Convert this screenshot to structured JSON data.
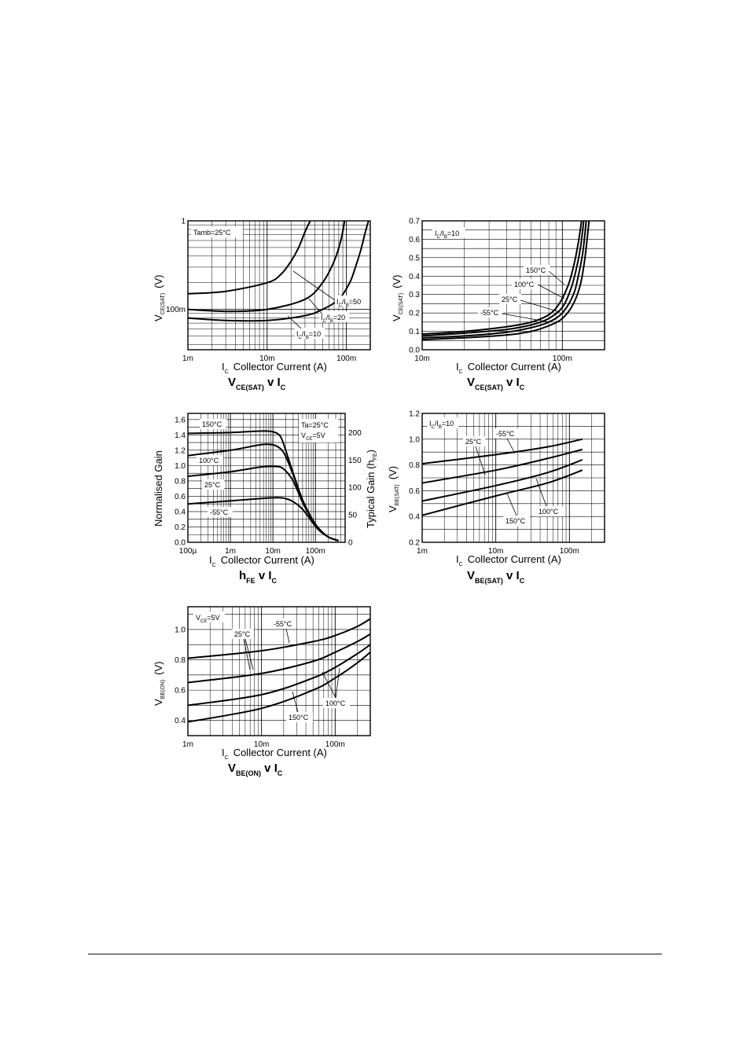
{
  "chart_data": [
    {
      "id": "c1",
      "type": "line",
      "title": "VCE(SAT) v IC",
      "xlabel": "IC Collector Current (A)",
      "ylabel": "VCE(SAT) (V)",
      "xscale": "log",
      "yscale": "log",
      "xlim": [
        0.001,
        0.2
      ],
      "ylim": [
        0.035,
        1
      ],
      "xticks": [
        [
          "1m",
          0.001
        ],
        [
          "10m",
          0.01
        ],
        [
          "100m",
          0.1
        ]
      ],
      "yticks": [
        [
          "100m",
          0.1
        ],
        [
          "1",
          1
        ]
      ],
      "annotations": [
        "Tamb=25°C",
        "IC/IB=50",
        "IC/IB=20",
        "IC/IB=10"
      ],
      "series": [
        {
          "name": "IC/IB=50",
          "x": [
            0.001,
            0.003,
            0.01,
            0.015,
            0.02,
            0.025,
            0.03,
            0.035
          ],
          "y": [
            0.15,
            0.16,
            0.2,
            0.25,
            0.35,
            0.5,
            0.75,
            1.0
          ]
        },
        {
          "name": "IC/IB=20",
          "x": [
            0.001,
            0.003,
            0.01,
            0.03,
            0.05,
            0.07,
            0.085,
            0.095
          ],
          "y": [
            0.1,
            0.095,
            0.1,
            0.13,
            0.2,
            0.35,
            0.6,
            1.0
          ]
        },
        {
          "name": "IC/IB=10",
          "x": [
            0.001,
            0.003,
            0.01,
            0.03,
            0.05,
            0.08,
            0.11,
            0.13,
            0.15,
            0.17,
            0.19
          ],
          "y": [
            0.08,
            0.075,
            0.075,
            0.085,
            0.1,
            0.13,
            0.2,
            0.3,
            0.45,
            0.7,
            1.0
          ]
        }
      ]
    },
    {
      "id": "c2",
      "type": "line",
      "title": "VCE(SAT) v IC",
      "xlabel": "IC Collector Current (A)",
      "ylabel": "VCE(SAT) (V)",
      "xscale": "log",
      "yscale": "linear",
      "xlim": [
        0.01,
        0.2
      ],
      "ylim": [
        0,
        0.7
      ],
      "xticks": [
        [
          "10m",
          0.01
        ],
        [
          "100m",
          0.1
        ]
      ],
      "yticks": [
        [
          "0.0",
          0
        ],
        [
          "0.1",
          0.1
        ],
        [
          "0.2",
          0.2
        ],
        [
          "0.3",
          0.3
        ],
        [
          "0.4",
          0.4
        ],
        [
          "0.5",
          0.5
        ],
        [
          "0.6",
          0.6
        ],
        [
          "0.7",
          0.7
        ]
      ],
      "annotations": [
        "IC/IB=10"
      ],
      "series": [
        {
          "name": "150°C",
          "x": [
            0.01,
            0.02,
            0.04,
            0.06,
            0.08,
            0.095,
            0.11,
            0.12,
            0.13,
            0.137
          ],
          "y": [
            0.085,
            0.1,
            0.125,
            0.15,
            0.19,
            0.25,
            0.35,
            0.45,
            0.58,
            0.7
          ]
        },
        {
          "name": "100°C",
          "x": [
            0.01,
            0.02,
            0.04,
            0.06,
            0.08,
            0.1,
            0.115,
            0.125,
            0.135,
            0.142
          ],
          "y": [
            0.075,
            0.09,
            0.11,
            0.135,
            0.17,
            0.23,
            0.33,
            0.43,
            0.56,
            0.7
          ]
        },
        {
          "name": "25°C",
          "x": [
            0.01,
            0.02,
            0.04,
            0.06,
            0.08,
            0.1,
            0.12,
            0.13,
            0.14,
            0.148
          ],
          "y": [
            0.065,
            0.075,
            0.095,
            0.12,
            0.15,
            0.2,
            0.3,
            0.4,
            0.53,
            0.7
          ]
        },
        {
          "name": "-55°C",
          "x": [
            0.01,
            0.02,
            0.04,
            0.06,
            0.08,
            0.1,
            0.12,
            0.135,
            0.145,
            0.155
          ],
          "y": [
            0.055,
            0.065,
            0.08,
            0.1,
            0.13,
            0.17,
            0.25,
            0.36,
            0.5,
            0.7
          ]
        }
      ]
    },
    {
      "id": "c3",
      "type": "line",
      "title": "hFE v IC",
      "xlabel": "IC Collector Current (A)",
      "ylabel": "Normalised Gain",
      "y2label": "Typical Gain (hFE)",
      "xscale": "log",
      "yscale": "linear",
      "xlim": [
        0.0001,
        0.5
      ],
      "ylim": [
        0,
        1.68
      ],
      "xticks": [
        [
          "100µ",
          0.0001
        ],
        [
          "1m",
          0.001
        ],
        [
          "10m",
          0.01
        ],
        [
          "100m",
          0.1
        ]
      ],
      "yticks": [
        [
          "0.0",
          0
        ],
        [
          "0.2",
          0.2
        ],
        [
          "0.4",
          0.4
        ],
        [
          "0.6",
          0.6
        ],
        [
          "0.8",
          0.8
        ],
        [
          "1.0",
          1.0
        ],
        [
          "1.2",
          1.2
        ],
        [
          "1.4",
          1.4
        ],
        [
          "1.6",
          1.6
        ]
      ],
      "y2ticks": [
        [
          "0",
          0
        ],
        [
          "50",
          50
        ],
        [
          "100",
          100
        ],
        [
          "150",
          150
        ],
        [
          "200",
          200
        ]
      ],
      "y2lim": [
        0,
        235
      ],
      "annotations": [
        "Ta=25°C",
        "VCE=5V"
      ],
      "series": [
        {
          "name": "150°C",
          "x": [
            0.0001,
            0.001,
            0.005,
            0.01,
            0.015,
            0.02,
            0.03,
            0.05,
            0.08,
            0.12,
            0.2,
            0.35
          ],
          "y": [
            1.42,
            1.43,
            1.45,
            1.44,
            1.38,
            1.2,
            0.9,
            0.55,
            0.32,
            0.18,
            0.07,
            0.02
          ]
        },
        {
          "name": "100°C",
          "x": [
            0.0001,
            0.001,
            0.005,
            0.01,
            0.015,
            0.02,
            0.03,
            0.05,
            0.08,
            0.12,
            0.2,
            0.35
          ],
          "y": [
            1.13,
            1.2,
            1.27,
            1.27,
            1.22,
            1.12,
            0.88,
            0.55,
            0.32,
            0.18,
            0.07,
            0.02
          ]
        },
        {
          "name": "25°C",
          "x": [
            0.0001,
            0.001,
            0.005,
            0.01,
            0.015,
            0.02,
            0.03,
            0.05,
            0.08,
            0.12,
            0.2,
            0.35
          ],
          "y": [
            0.86,
            0.92,
            0.98,
            0.99,
            0.98,
            0.93,
            0.8,
            0.52,
            0.31,
            0.17,
            0.07,
            0.02
          ]
        },
        {
          "name": "-55°C",
          "x": [
            0.0001,
            0.001,
            0.005,
            0.01,
            0.015,
            0.02,
            0.03,
            0.05,
            0.08,
            0.12,
            0.2,
            0.35
          ],
          "y": [
            0.5,
            0.54,
            0.57,
            0.58,
            0.58,
            0.57,
            0.53,
            0.43,
            0.28,
            0.16,
            0.07,
            0.02
          ]
        }
      ]
    },
    {
      "id": "c4",
      "type": "line",
      "title": "VBE(SAT) v IC",
      "xlabel": "IC Collector Current (A)",
      "ylabel": "VBE(SAT) (V)",
      "xscale": "log",
      "yscale": "linear",
      "xlim": [
        0.001,
        0.3
      ],
      "ylim": [
        0.2,
        1.2
      ],
      "xticks": [
        [
          "1m",
          0.001
        ],
        [
          "10m",
          0.01
        ],
        [
          "100m",
          0.1
        ]
      ],
      "yticks": [
        [
          "0.2",
          0.2
        ],
        [
          "0.4",
          0.4
        ],
        [
          "0.6",
          0.6
        ],
        [
          "0.8",
          0.8
        ],
        [
          "1.0",
          1.0
        ],
        [
          "1.2",
          1.2
        ]
      ],
      "annotations": [
        "IC/IB=10"
      ],
      "series": [
        {
          "name": "-55°C",
          "x": [
            0.001,
            0.01,
            0.05,
            0.15
          ],
          "y": [
            0.81,
            0.88,
            0.94,
            1.0
          ]
        },
        {
          "name": "25°C",
          "x": [
            0.001,
            0.01,
            0.05,
            0.15
          ],
          "y": [
            0.66,
            0.76,
            0.85,
            0.92
          ]
        },
        {
          "name": "100°C",
          "x": [
            0.001,
            0.01,
            0.05,
            0.15
          ],
          "y": [
            0.52,
            0.64,
            0.74,
            0.84
          ]
        },
        {
          "name": "150°C",
          "x": [
            0.001,
            0.01,
            0.05,
            0.15
          ],
          "y": [
            0.41,
            0.56,
            0.66,
            0.76
          ]
        }
      ]
    },
    {
      "id": "c5",
      "type": "line",
      "title": "VBE(ON) v IC",
      "xlabel": "IC Collector Current (A)",
      "ylabel": "VBE(ON) (V)",
      "xscale": "log",
      "yscale": "linear",
      "xlim": [
        0.001,
        0.3
      ],
      "ylim": [
        0.3,
        1.15
      ],
      "xticks": [
        [
          "1m",
          0.001
        ],
        [
          "10m",
          0.01
        ],
        [
          "100m",
          0.1
        ]
      ],
      "yticks": [
        [
          "0.4",
          0.4
        ],
        [
          "0.6",
          0.6
        ],
        [
          "0.8",
          0.8
        ],
        [
          "1.0",
          1.0
        ]
      ],
      "annotations": [
        "VCE=5V"
      ],
      "series": [
        {
          "name": "-55°C",
          "x": [
            0.001,
            0.01,
            0.05,
            0.1,
            0.2,
            0.3
          ],
          "y": [
            0.81,
            0.86,
            0.92,
            0.96,
            1.02,
            1.07
          ]
        },
        {
          "name": "25°C",
          "x": [
            0.001,
            0.01,
            0.05,
            0.1,
            0.2,
            0.3
          ],
          "y": [
            0.65,
            0.71,
            0.79,
            0.85,
            0.92,
            0.97
          ]
        },
        {
          "name": "100°C",
          "x": [
            0.001,
            0.01,
            0.05,
            0.1,
            0.2,
            0.3
          ],
          "y": [
            0.5,
            0.57,
            0.68,
            0.75,
            0.84,
            0.9
          ]
        },
        {
          "name": "150°C",
          "x": [
            0.001,
            0.01,
            0.05,
            0.1,
            0.2,
            0.3
          ],
          "y": [
            0.39,
            0.48,
            0.6,
            0.68,
            0.78,
            0.85
          ]
        }
      ]
    }
  ]
}
